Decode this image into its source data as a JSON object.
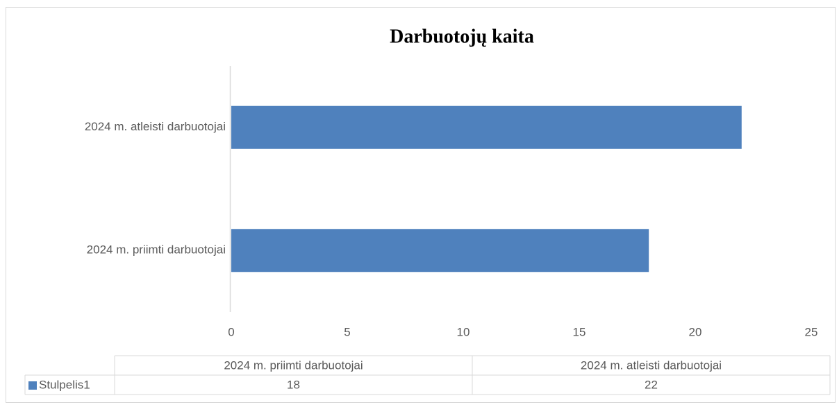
{
  "chart_data": {
    "type": "bar",
    "orientation": "horizontal",
    "title": "Darbuotojų kaita",
    "categories": [
      "2024 m. priimti darbuotojai",
      "2024 m. atleisti darbuotojai"
    ],
    "series": [
      {
        "name": "Stulpelis1",
        "color": "#4f81bd",
        "values": [
          18,
          22
        ]
      }
    ],
    "xlim": [
      0,
      25
    ],
    "xticks": [
      0,
      5,
      10,
      15,
      20,
      25
    ],
    "grid": false,
    "data_table": true
  }
}
